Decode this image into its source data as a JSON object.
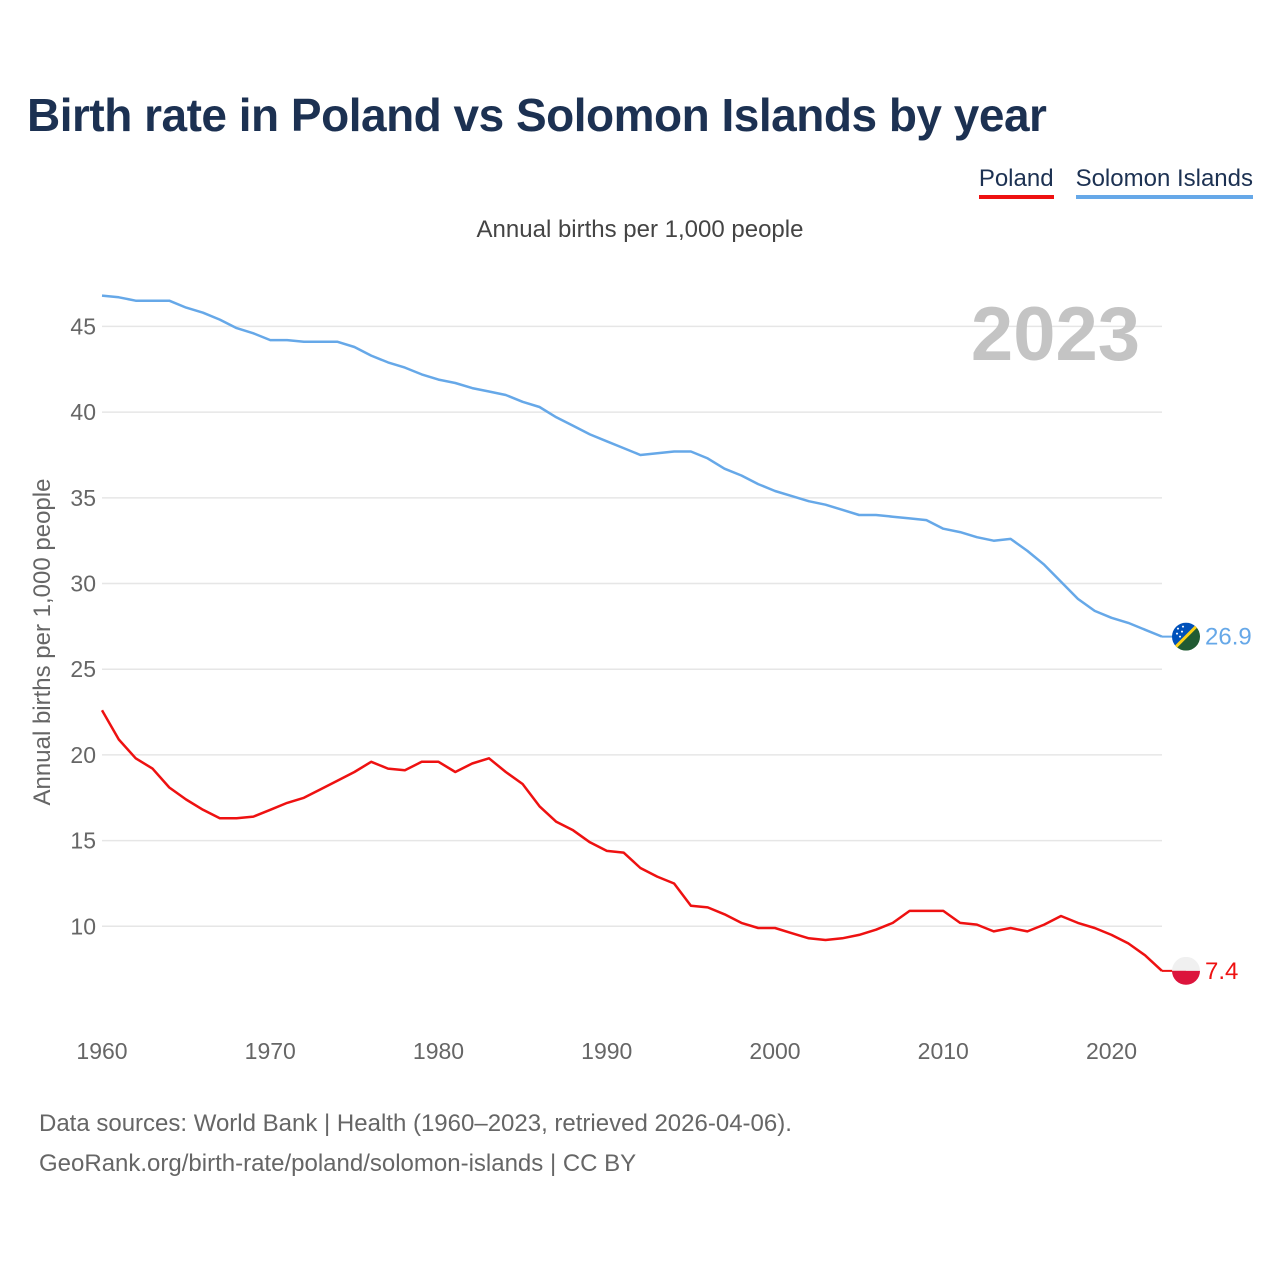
{
  "title": "Birth rate in Poland vs Solomon Islands by year",
  "subtitle": "Annual births per 1,000 people",
  "year_label": "2023",
  "colors": {
    "poland": "#ee1111",
    "solomon": "#66a8e8",
    "title": "#1c3152",
    "grid": "#e6e6e6",
    "year": "#c4c4c4"
  },
  "footer": {
    "sources": "Data sources: World Bank | Health (1960–2023, retrieved 2026-04-06).",
    "url": "GeoRank.org/birth-rate/poland/solomon-islands | CC BY"
  },
  "chart_data": {
    "type": "line",
    "title": "Birth rate in Poland vs Solomon Islands by year",
    "ylabel": "Annual births per 1,000 people",
    "xlabel": "",
    "xlim": [
      1960,
      2023
    ],
    "ylim": [
      5,
      48
    ],
    "x_ticks": [
      1960,
      1970,
      1980,
      1990,
      2000,
      2010,
      2020
    ],
    "y_ticks": [
      10,
      15,
      20,
      25,
      30,
      35,
      40,
      45
    ],
    "x": [
      1960,
      1961,
      1962,
      1963,
      1964,
      1965,
      1966,
      1967,
      1968,
      1969,
      1970,
      1971,
      1972,
      1973,
      1974,
      1975,
      1976,
      1977,
      1978,
      1979,
      1980,
      1981,
      1982,
      1983,
      1984,
      1985,
      1986,
      1987,
      1988,
      1989,
      1990,
      1991,
      1992,
      1993,
      1994,
      1995,
      1996,
      1997,
      1998,
      1999,
      2000,
      2001,
      2002,
      2003,
      2004,
      2005,
      2006,
      2007,
      2008,
      2009,
      2010,
      2011,
      2012,
      2013,
      2014,
      2015,
      2016,
      2017,
      2018,
      2019,
      2020,
      2021,
      2022,
      2023
    ],
    "series": [
      {
        "name": "Poland",
        "color": "#ee1111",
        "end_label": "7.4",
        "values": [
          22.6,
          20.9,
          19.8,
          19.2,
          18.1,
          17.4,
          16.8,
          16.3,
          16.3,
          16.4,
          16.8,
          17.2,
          17.5,
          18.0,
          18.5,
          19.0,
          19.6,
          19.2,
          19.1,
          19.6,
          19.6,
          19.0,
          19.5,
          19.8,
          19.0,
          18.3,
          17.0,
          16.1,
          15.6,
          14.9,
          14.4,
          14.3,
          13.4,
          12.9,
          12.5,
          11.2,
          11.1,
          10.7,
          10.2,
          9.9,
          9.9,
          9.6,
          9.3,
          9.2,
          9.3,
          9.5,
          9.8,
          10.2,
          10.9,
          10.9,
          10.9,
          10.2,
          10.1,
          9.7,
          9.9,
          9.7,
          10.1,
          10.6,
          10.2,
          9.9,
          9.5,
          9.0,
          8.3,
          7.4
        ]
      },
      {
        "name": "Solomon Islands",
        "color": "#66a8e8",
        "end_label": "26.9",
        "values": [
          46.8,
          46.7,
          46.5,
          46.5,
          46.5,
          46.1,
          45.8,
          45.4,
          44.9,
          44.6,
          44.2,
          44.2,
          44.1,
          44.1,
          44.1,
          43.8,
          43.3,
          42.9,
          42.6,
          42.2,
          41.9,
          41.7,
          41.4,
          41.2,
          41.0,
          40.6,
          40.3,
          39.7,
          39.2,
          38.7,
          38.3,
          37.9,
          37.5,
          37.6,
          37.7,
          37.7,
          37.3,
          36.7,
          36.3,
          35.8,
          35.4,
          35.1,
          34.8,
          34.6,
          34.3,
          34.0,
          34.0,
          33.9,
          33.8,
          33.7,
          33.2,
          33.0,
          32.7,
          32.5,
          32.6,
          31.9,
          31.1,
          30.1,
          29.1,
          28.4,
          28.0,
          27.7,
          27.3,
          26.9
        ]
      }
    ]
  }
}
